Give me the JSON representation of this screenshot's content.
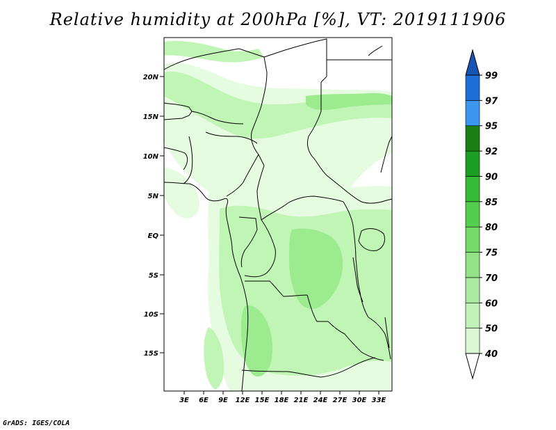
{
  "title": "Relative humidity at 200hPa [%], VT: 2019111906",
  "credit": "GrADS: IGES/COLA",
  "map": {
    "lat_ticks": [
      "20N",
      "15N",
      "10N",
      "5N",
      "EQ",
      "5S",
      "10S",
      "15S"
    ],
    "lon_ticks": [
      "3E",
      "6E",
      "9E",
      "12E",
      "15E",
      "18E",
      "21E",
      "24E",
      "27E",
      "30E",
      "33E"
    ],
    "fill_colors": {
      "light": "#e6fce1",
      "mid": "#c0f5b5",
      "strong": "#9ceb8f"
    },
    "border_color": "#000000"
  },
  "colorbar": {
    "levels": [
      "40",
      "50",
      "60",
      "70",
      "75",
      "80",
      "85",
      "90",
      "92",
      "95",
      "97",
      "99"
    ],
    "colors": [
      "#f0fdf0",
      "#daf7d3",
      "#c3f2b9",
      "#aaeaa0",
      "#92e385",
      "#74da6a",
      "#55cd4f",
      "#35ba37",
      "#1a9e24",
      "#1b7f15",
      "#3b96f0",
      "#1e6fd8",
      "#1655b3"
    ]
  }
}
